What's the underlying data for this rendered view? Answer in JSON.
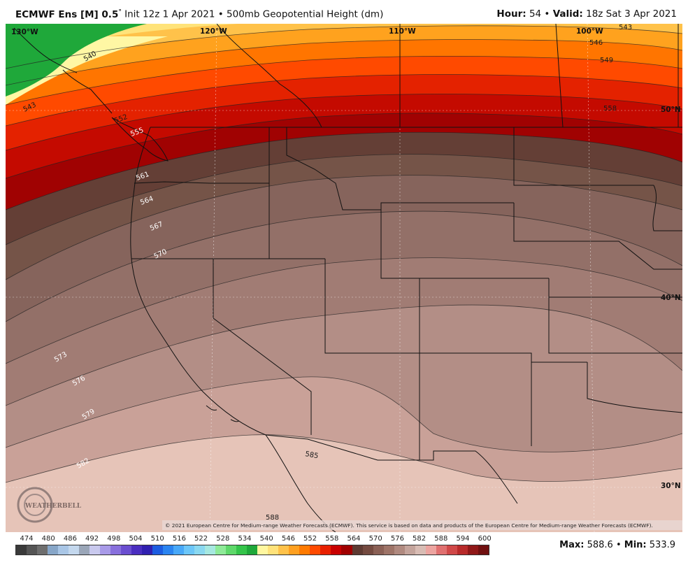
{
  "header": {
    "model": "ECMWF Ens [M] 0.5",
    "degree": "°",
    "init": "Init 12z 1 Apr 2021",
    "bullet": "•",
    "product": "500mb Geopotential Height (dm)",
    "hour_label": "Hour:",
    "hour": "54",
    "valid_label": "Valid:",
    "valid": "18z Sat 3 Apr 2021"
  },
  "map": {
    "lon_labels": [
      "130°W",
      "120°W",
      "110°W",
      "100°W"
    ],
    "lat_labels": [
      "50°N",
      "40°N",
      "30°N"
    ],
    "contour_labels": [
      "540",
      "543",
      "543",
      "546",
      "549",
      "552",
      "555",
      "558",
      "561",
      "564",
      "567",
      "570",
      "573",
      "576",
      "579",
      "582",
      "585",
      "588"
    ],
    "copyright": "© 2021 European Centre for Medium-range Weather Forecasts (ECMWF). This service is based on data and products of the European Centre for Medium-range Weather Forecasts (ECMWF).",
    "logo_text": "WEATHERBELL"
  },
  "scale": {
    "labels": [
      "474",
      "480",
      "486",
      "492",
      "498",
      "504",
      "510",
      "516",
      "522",
      "528",
      "534",
      "540",
      "546",
      "552",
      "558",
      "564",
      "570",
      "576",
      "582",
      "588",
      "594",
      "600"
    ],
    "colors": [
      "#3a3a3a",
      "#555555",
      "#6e6e6e",
      "#87a6c8",
      "#a9c6e6",
      "#c4d8ee",
      "#9aa6b8",
      "#c9c9ee",
      "#a89ae8",
      "#8870dd",
      "#6a4ed0",
      "#4a2ec0",
      "#3020b0",
      "#1c5ce0",
      "#2a84f0",
      "#48a8f8",
      "#6cc6f8",
      "#8ad8f0",
      "#a6e8e0",
      "#8eea98",
      "#5ed86a",
      "#34c44a",
      "#1fa83a",
      "#fff7a0",
      "#ffe27a",
      "#ffc24a",
      "#ffa020",
      "#ff7a00",
      "#ff4a00",
      "#e82000",
      "#c80000",
      "#a00000",
      "#5e3a32",
      "#744a40",
      "#8a6055",
      "#9e7468",
      "#b08a80",
      "#c4a49c",
      "#d8bcb4",
      "#eca4a0",
      "#e07070",
      "#d04848",
      "#b82a2a",
      "#901818",
      "#701010"
    ],
    "max_label": "Max:",
    "max": "588.6",
    "min_label": "Min:",
    "min": "533.9"
  }
}
